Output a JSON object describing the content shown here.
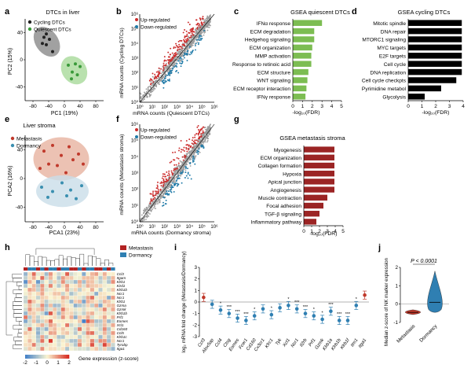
{
  "panel_letters": [
    "a",
    "b",
    "c",
    "d",
    "e",
    "f",
    "g",
    "h",
    "i",
    "j"
  ],
  "chart_data": [
    {
      "id": "a",
      "type": "scatter",
      "title": "DTCs in liver",
      "xlabel": "PC1 (19%)",
      "ylabel": "PC2 (15%)",
      "xlim": [
        -100,
        100
      ],
      "ylim": [
        -60,
        60
      ],
      "xticks": [
        -80,
        -40,
        0,
        40,
        80
      ],
      "yticks": [
        -40,
        0,
        40
      ],
      "legend_position": "top-left",
      "series": [
        {
          "name": "Cycling DTCs",
          "color": "#222222",
          "hull": "#8a8a8a",
          "points": [
            [
              -52,
              33
            ],
            [
              -46,
              38
            ],
            [
              -56,
              24
            ],
            [
              -38,
              30
            ],
            [
              -46,
              22
            ],
            [
              -30,
              12
            ]
          ]
        },
        {
          "name": "Quiescent DTCs",
          "color": "#3a9a3a",
          "hull": "#a8d99a",
          "points": [
            [
              10,
              -8
            ],
            [
              20,
              -18
            ],
            [
              28,
              -6
            ],
            [
              33,
              -22
            ],
            [
              40,
              -10
            ],
            [
              18,
              -28
            ]
          ]
        }
      ]
    },
    {
      "id": "b",
      "type": "scatter",
      "xlabel": "mRNA counts (Quiescent DTCs)",
      "ylabel": "mRNA counts (Cycling DTCs)",
      "scale": "log",
      "xlim": [
        1,
        1000000
      ],
      "ylim": [
        1,
        1000000
      ],
      "ticks": [
        "10⁰",
        "10¹",
        "10²",
        "10³",
        "10⁴",
        "10⁵",
        "10⁶"
      ],
      "legend_position": "top-left",
      "series": [
        {
          "name": "Up-regulated",
          "color": "#cc2b2b"
        },
        {
          "name": "Down-regulated",
          "color": "#1f7aa8"
        }
      ]
    },
    {
      "id": "c",
      "type": "bar",
      "title": "GSEA quiescent DTCs",
      "xlabel": "-log₁₀(FDR)",
      "xlim": [
        0,
        5
      ],
      "xticks": [
        0,
        1,
        2,
        3,
        4,
        5
      ],
      "color": "#7cbd52",
      "categories": [
        "IFNα response",
        "ECM degradation",
        "Hedgehog signaling",
        "ECM organization",
        "MMP activation",
        "Response to retinoic acid",
        "ECM structure",
        "WNT signaling",
        "ECM receptor interaction",
        "IFNγ response"
      ],
      "values": [
        3.0,
        2.2,
        2.2,
        2.0,
        1.9,
        1.9,
        1.6,
        1.5,
        1.4,
        1.3
      ]
    },
    {
      "id": "d",
      "type": "bar",
      "title": "GSEA cycling DTCs",
      "xlabel": "-log₁₀(FDR)",
      "xlim": [
        0,
        4
      ],
      "xticks": [
        0,
        1,
        2,
        3,
        4
      ],
      "color": "#000000",
      "categories": [
        "Mitotic spindle",
        "DNA repair",
        "MTORC1 signaling",
        "MYC targets",
        "E2F targets",
        "Cell cycle",
        "DNA replication",
        "Cell cycle checkpts",
        "Pyrimidine metabol",
        "Glycolysis"
      ],
      "values": [
        3.9,
        3.9,
        3.9,
        3.9,
        3.9,
        3.9,
        3.9,
        3.5,
        2.4,
        1.2
      ]
    },
    {
      "id": "e",
      "type": "scatter",
      "title": "Liver stroma",
      "xlabel": "PCA1 (23%)",
      "ylabel": "PCA2 (16%)",
      "xlim": [
        -100,
        100
      ],
      "ylim": [
        -60,
        60
      ],
      "xticks": [
        -80,
        -40,
        0,
        40,
        80
      ],
      "yticks": [
        -40,
        0,
        40
      ],
      "legend_position": "top-left",
      "series": [
        {
          "name": "Metastasis",
          "color": "#c0392b",
          "hull": "#e7b3a0",
          "points": [
            [
              -52,
              38
            ],
            [
              -30,
              46
            ],
            [
              -8,
              32
            ],
            [
              12,
              44
            ],
            [
              -40,
              20
            ],
            [
              -18,
              18
            ],
            [
              22,
              26
            ],
            [
              48,
              20
            ],
            [
              -62,
              14
            ],
            [
              4,
              8
            ],
            [
              36,
              34
            ]
          ]
        },
        {
          "name": "Dormancy",
          "color": "#3a8fb0",
          "hull": "#c9dde8",
          "points": [
            [
              -58,
              -12
            ],
            [
              -30,
              -18
            ],
            [
              -6,
              -6
            ],
            [
              16,
              -16
            ],
            [
              44,
              -10
            ],
            [
              -42,
              -26
            ],
            [
              6,
              -24
            ],
            [
              30,
              -28
            ]
          ]
        }
      ]
    },
    {
      "id": "f",
      "type": "scatter",
      "xlabel": "mRNA counts (Dormancy stroma)",
      "ylabel": "mRNA counts (Metastasis stroma)",
      "scale": "log",
      "xlim": [
        1,
        1000000
      ],
      "ylim": [
        1,
        1000000
      ],
      "ticks": [
        "10⁰",
        "10¹",
        "10²",
        "10³",
        "10⁴",
        "10⁵",
        "10⁶"
      ],
      "legend_position": "top-left",
      "series": [
        {
          "name": "Up-regulated",
          "color": "#cc2b2b"
        },
        {
          "name": "Down-regulated",
          "color": "#1f7aa8"
        }
      ]
    },
    {
      "id": "g",
      "type": "bar",
      "title": "GSEA metastasis stroma",
      "xlabel": "-log₁₀(FDR)",
      "xlim": [
        0,
        5
      ],
      "xticks": [
        0,
        1,
        2,
        3,
        4,
        5
      ],
      "color": "#9b2424",
      "categories": [
        "Myogenesis",
        "ECM organization",
        "Collagen formation",
        "Hypoxia",
        "Apical junction",
        "Angiogenesis",
        "Muscle contraction",
        "Focal adhesion",
        "TGF-β signaling",
        "Inflammatory pathway"
      ],
      "values": [
        3.9,
        3.9,
        3.9,
        3.9,
        3.9,
        3.9,
        3.0,
        2.5,
        2.0,
        1.6
      ]
    },
    {
      "id": "h",
      "type": "heatmap",
      "legend": [
        {
          "name": "Metastasis",
          "color": "#b22222"
        },
        {
          "name": "Dormancy",
          "color": "#2f7fb2"
        }
      ],
      "colorbar_label": "Gene expression (z-score)",
      "colorbar_ticks": [
        -2,
        -1,
        0,
        1,
        2
      ],
      "row_labels": [
        "Ccl3",
        "Itgam",
        "Klrb1",
        "Kird1",
        "Klrb1b",
        "Ncr1",
        "Ncr1",
        "Klrb1",
        "Gzma",
        "Gzmk",
        "Klrb1b",
        "Prf1",
        "Eomes",
        "Xcl1",
        "Cd160",
        "Ccl5",
        "Klrb1c",
        "Ncr1",
        "Tyrobp",
        "Itga1"
      ],
      "columns": 22,
      "column_groups": [
        "m",
        "d",
        "d",
        "m",
        "d",
        "m",
        "d",
        "d",
        "m",
        "d",
        "d",
        "m",
        "m",
        "d",
        "m",
        "d",
        "d",
        "m",
        "m",
        "d",
        "m",
        "d"
      ]
    },
    {
      "id": "i",
      "type": "scatter",
      "ylabel": "log₂ mRNA fold change (Metastasis/Dormancy)",
      "ylim": [
        -3,
        3
      ],
      "yticks": [
        -3,
        -2,
        -1,
        0,
        1,
        2,
        3
      ],
      "categories": [
        "Ccl3",
        "Alox5ap",
        "Ccl4",
        "Ctsg",
        "Eomes",
        "Fcer1",
        "Cd160",
        "Cx3cr1",
        "Klrc1",
        "Tyk",
        "Xcl1",
        "Ncr1",
        "Il2rb",
        "Prf1",
        "Gzmk",
        "Klrb1a",
        "Klrb1b",
        "Klrb1f",
        "Itm1",
        "Itga1"
      ],
      "values": [
        0.4,
        -0.2,
        -0.7,
        -1.0,
        -1.4,
        -1.6,
        -1.2,
        -0.6,
        -1.1,
        -0.5,
        -0.3,
        -0.6,
        -1.0,
        -1.2,
        -1.5,
        -0.8,
        -1.6,
        -1.6,
        -0.3,
        0.6
      ],
      "significance": [
        "",
        "",
        "*",
        "***",
        "***",
        "***",
        "*",
        "",
        "*",
        "",
        "*",
        "***",
        "***",
        "*",
        "*",
        "***",
        "***",
        "***",
        "*",
        ""
      ],
      "colors": {
        "up": "#c0392b",
        "down": "#2f7fb2"
      }
    },
    {
      "id": "j",
      "type": "violin",
      "annotation": "P < 0.0001",
      "ylabel": "Median z-score of NK marker expression",
      "ylim": [
        -1,
        2
      ],
      "yticks": [
        -1,
        0,
        1,
        2
      ],
      "categories": [
        "Metastasis",
        "Dormancy"
      ],
      "medians": [
        -0.45,
        0.1
      ],
      "colors": [
        "#c0392b",
        "#2f7fb2"
      ]
    }
  ]
}
